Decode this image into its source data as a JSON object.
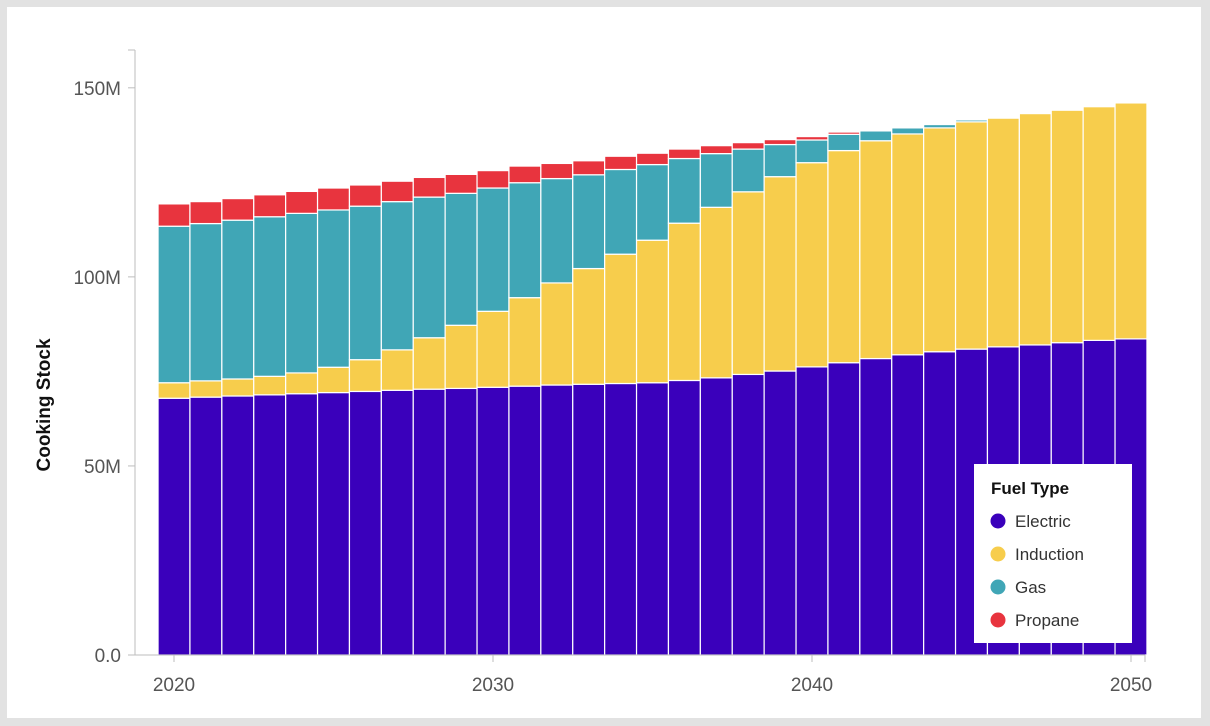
{
  "chart_data": {
    "type": "bar",
    "stacked": true,
    "title": "",
    "xlabel": "",
    "ylabel": "Cooking Stock",
    "ylim": [
      0,
      160000000
    ],
    "xlim": [
      2019.5,
      2050.5
    ],
    "y_ticks": [
      {
        "value": 0,
        "label": "0.0"
      },
      {
        "value": 50000000,
        "label": "50M"
      },
      {
        "value": 100000000,
        "label": "100M"
      },
      {
        "value": 150000000,
        "label": "150M"
      }
    ],
    "x_ticks": [
      {
        "value": 2020,
        "label": "2020"
      },
      {
        "value": 2030,
        "label": "2030"
      },
      {
        "value": 2040,
        "label": "2040"
      },
      {
        "value": 2050,
        "label": "2050"
      }
    ],
    "grid": false,
    "legend": {
      "title": "Fuel Type",
      "position": "bottom-right"
    },
    "categories": [
      2020,
      2021,
      2022,
      2023,
      2024,
      2025,
      2026,
      2027,
      2028,
      2029,
      2030,
      2031,
      2032,
      2033,
      2034,
      2035,
      2036,
      2037,
      2038,
      2039,
      2040,
      2041,
      2042,
      2043,
      2044,
      2045,
      2046,
      2047,
      2048,
      2049,
      2050
    ],
    "series": [
      {
        "name": "Electric",
        "color": "#3a00bb",
        "values": [
          67.9,
          68.2,
          68.5,
          68.8,
          69.1,
          69.4,
          69.7,
          70.0,
          70.3,
          70.5,
          70.8,
          71.1,
          71.4,
          71.6,
          71.8,
          72.0,
          72.6,
          73.3,
          74.2,
          75.1,
          76.2,
          77.3,
          78.4,
          79.4,
          80.2,
          80.9,
          81.5,
          82.0,
          82.6,
          83.2,
          83.6
        ]
      },
      {
        "name": "Induction",
        "color": "#f7cd4c",
        "values": [
          4.1,
          4.3,
          4.5,
          4.9,
          5.5,
          6.7,
          8.4,
          10.7,
          13.6,
          16.7,
          20.1,
          23.4,
          27.0,
          30.6,
          34.2,
          37.7,
          41.6,
          45.1,
          48.3,
          51.4,
          54.0,
          56.1,
          57.6,
          58.4,
          59.2,
          60.1,
          60.5,
          61.2,
          61.5,
          61.8,
          62.4
        ]
      },
      {
        "name": "Gas",
        "color": "#40a6b6",
        "values": [
          41.4,
          41.6,
          42.0,
          42.2,
          42.2,
          41.6,
          40.6,
          39.2,
          37.2,
          34.9,
          32.6,
          30.4,
          27.6,
          24.8,
          22.4,
          20.0,
          17.1,
          14.2,
          11.3,
          8.5,
          6.0,
          4.3,
          2.6,
          1.6,
          0.9,
          0.5,
          0.3,
          0.1,
          0.1,
          0.0,
          0.0
        ]
      },
      {
        "name": "Propane",
        "color": "#e8343e",
        "values": [
          5.9,
          5.8,
          5.7,
          5.8,
          5.8,
          5.8,
          5.6,
          5.4,
          5.2,
          5.0,
          4.6,
          4.4,
          4.0,
          3.7,
          3.5,
          3.0,
          2.5,
          2.1,
          1.7,
          1.3,
          0.9,
          0.6,
          0.3,
          0.2,
          0.1,
          0.0,
          0.0,
          0.0,
          0.0,
          0.0,
          0.0
        ]
      }
    ],
    "value_unit_multiplier": 1000000
  }
}
